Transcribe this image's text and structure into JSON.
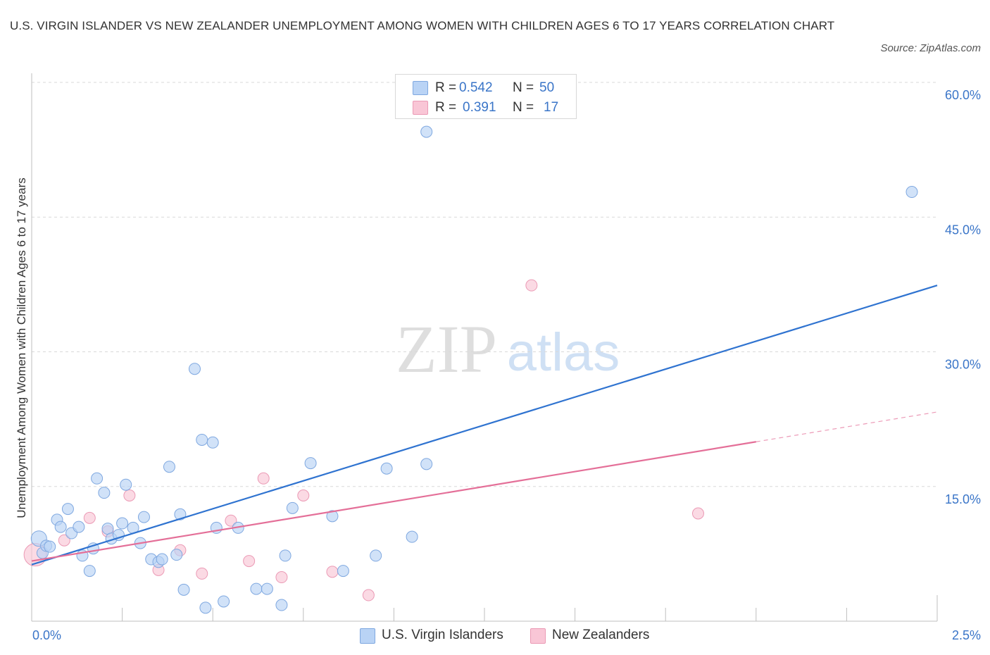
{
  "title": "U.S. VIRGIN ISLANDER VS NEW ZEALANDER UNEMPLOYMENT AMONG WOMEN WITH CHILDREN AGES 6 TO 17 YEARS CORRELATION CHART",
  "source": "Source: ZipAtlas.com",
  "watermark": {
    "zip": "ZIP",
    "atlas": "atlas"
  },
  "legend": {
    "r_label": "R =",
    "n_label": "N =",
    "rows": [
      {
        "r": "0.542",
        "n": "50",
        "fill": "#b9d3f5",
        "stroke": "#7fa8e0"
      },
      {
        "r": "0.391",
        "n": "17",
        "fill": "#f9c6d6",
        "stroke": "#eb9ab5"
      }
    ]
  },
  "chart_data": {
    "type": "scatter",
    "ylabel": "Unemployment Among Women with Children Ages 6 to 17 years",
    "xlabel": "",
    "xlim": [
      0,
      2.5
    ],
    "ylim": [
      0,
      60
    ],
    "x_tick_labels": [
      {
        "x": 0,
        "label": "0.0%"
      },
      {
        "x": 2.5,
        "label": "2.5%"
      }
    ],
    "y_tick_labels": [
      {
        "y": 15,
        "label": "15.0%"
      },
      {
        "y": 30,
        "label": "30.0%"
      },
      {
        "y": 45,
        "label": "45.0%"
      },
      {
        "y": 60,
        "label": "60.0%"
      }
    ],
    "grid": true,
    "colors": {
      "blue_fill": "#b9d3f5",
      "blue_stroke": "#7fa8e0",
      "blue_line": "#2f73d0",
      "pink_fill": "#f9c6d6",
      "pink_stroke": "#eb9ab5",
      "pink_line": "#e46f98",
      "tick_label": "#3a75c8"
    },
    "series": [
      {
        "name": "U.S. Virgin Islanders",
        "r": 0.542,
        "n": 50,
        "trend": {
          "x": [
            0.0,
            2.5
          ],
          "y": [
            6.3,
            37.4
          ],
          "dashed_from": null
        },
        "points": [
          {
            "x": 0.02,
            "y": 9.2,
            "s": 11
          },
          {
            "x": 0.03,
            "y": 7.6,
            "s": 8
          },
          {
            "x": 0.04,
            "y": 8.4
          },
          {
            "x": 0.05,
            "y": 8.3
          },
          {
            "x": 0.07,
            "y": 11.3
          },
          {
            "x": 0.08,
            "y": 10.5
          },
          {
            "x": 0.1,
            "y": 12.5
          },
          {
            "x": 0.11,
            "y": 9.8
          },
          {
            "x": 0.13,
            "y": 10.5
          },
          {
            "x": 0.14,
            "y": 7.3
          },
          {
            "x": 0.16,
            "y": 5.6
          },
          {
            "x": 0.17,
            "y": 8.1
          },
          {
            "x": 0.18,
            "y": 15.9
          },
          {
            "x": 0.2,
            "y": 14.3
          },
          {
            "x": 0.21,
            "y": 10.3
          },
          {
            "x": 0.22,
            "y": 9.2
          },
          {
            "x": 0.24,
            "y": 9.6
          },
          {
            "x": 0.25,
            "y": 10.9
          },
          {
            "x": 0.26,
            "y": 15.2
          },
          {
            "x": 0.28,
            "y": 10.4
          },
          {
            "x": 0.3,
            "y": 8.7
          },
          {
            "x": 0.31,
            "y": 11.6
          },
          {
            "x": 0.33,
            "y": 6.9
          },
          {
            "x": 0.35,
            "y": 6.6
          },
          {
            "x": 0.36,
            "y": 6.9
          },
          {
            "x": 0.38,
            "y": 17.2
          },
          {
            "x": 0.4,
            "y": 7.4
          },
          {
            "x": 0.41,
            "y": 11.9
          },
          {
            "x": 0.42,
            "y": 3.5
          },
          {
            "x": 0.45,
            "y": 28.1
          },
          {
            "x": 0.47,
            "y": 20.2
          },
          {
            "x": 0.48,
            "y": 1.5
          },
          {
            "x": 0.5,
            "y": 19.9
          },
          {
            "x": 0.51,
            "y": 10.4
          },
          {
            "x": 0.53,
            "y": 2.2
          },
          {
            "x": 0.57,
            "y": 10.4
          },
          {
            "x": 0.62,
            "y": 3.6
          },
          {
            "x": 0.65,
            "y": 3.6
          },
          {
            "x": 0.69,
            "y": 1.8
          },
          {
            "x": 0.7,
            "y": 7.3
          },
          {
            "x": 0.72,
            "y": 12.6
          },
          {
            "x": 0.77,
            "y": 17.6
          },
          {
            "x": 0.83,
            "y": 11.7
          },
          {
            "x": 0.86,
            "y": 5.6
          },
          {
            "x": 0.95,
            "y": 7.3
          },
          {
            "x": 0.98,
            "y": 17.0
          },
          {
            "x": 1.05,
            "y": 9.4
          },
          {
            "x": 1.09,
            "y": 17.5
          },
          {
            "x": 1.09,
            "y": 54.5
          },
          {
            "x": 2.43,
            "y": 47.8
          }
        ]
      },
      {
        "name": "New Zealanders",
        "r": 0.391,
        "n": 17,
        "trend": {
          "x": [
            0.0,
            2.5
          ],
          "y": [
            6.7,
            23.3
          ],
          "dashed_from": 2.0
        },
        "points": [
          {
            "x": 0.01,
            "y": 7.4,
            "s": 16
          },
          {
            "x": 0.09,
            "y": 9.0
          },
          {
            "x": 0.16,
            "y": 11.5
          },
          {
            "x": 0.21,
            "y": 10.0
          },
          {
            "x": 0.27,
            "y": 14.0
          },
          {
            "x": 0.35,
            "y": 5.7
          },
          {
            "x": 0.41,
            "y": 7.9
          },
          {
            "x": 0.47,
            "y": 5.3
          },
          {
            "x": 0.55,
            "y": 11.2
          },
          {
            "x": 0.6,
            "y": 6.7
          },
          {
            "x": 0.64,
            "y": 15.9
          },
          {
            "x": 0.69,
            "y": 4.9
          },
          {
            "x": 0.75,
            "y": 14.0
          },
          {
            "x": 0.83,
            "y": 5.5
          },
          {
            "x": 0.93,
            "y": 2.9
          },
          {
            "x": 1.38,
            "y": 37.4
          },
          {
            "x": 1.84,
            "y": 12.0
          }
        ]
      }
    ]
  }
}
